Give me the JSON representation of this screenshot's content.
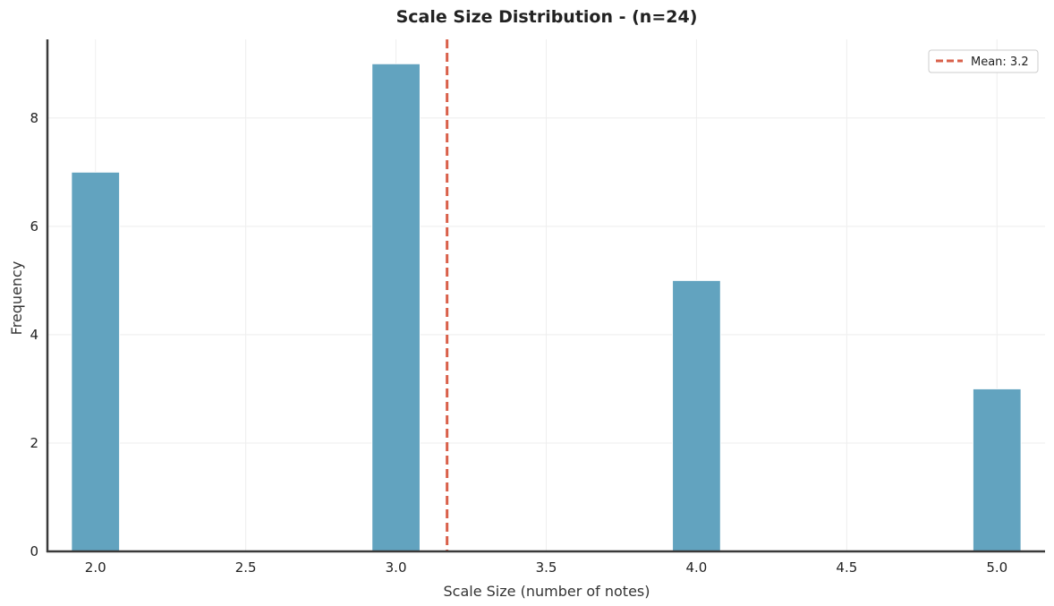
{
  "chart_data": {
    "type": "bar",
    "title": "Scale Size Distribution - (n=24)",
    "xlabel": "Scale Size (number of notes)",
    "ylabel": "Frequency",
    "bins": [
      {
        "x": 2.0,
        "value": 7
      },
      {
        "x": 3.0,
        "value": 9
      },
      {
        "x": 4.0,
        "value": 5
      },
      {
        "x": 5.0,
        "value": 3
      }
    ],
    "bin_width": 0.16,
    "xlim": [
      1.84,
      5.16
    ],
    "ylim": [
      0,
      9.45
    ],
    "xticks": [
      2.0,
      2.5,
      3.0,
      3.5,
      4.0,
      4.5,
      5.0
    ],
    "xtick_labels": [
      "2.0",
      "2.5",
      "3.0",
      "3.5",
      "4.0",
      "4.5",
      "5.0"
    ],
    "yticks": [
      0,
      2,
      4,
      6,
      8
    ],
    "ytick_labels": [
      "0",
      "2",
      "4",
      "6",
      "8"
    ],
    "mean": 3.17,
    "legend": {
      "label": "Mean: 3.2",
      "position": "top-right"
    },
    "grid": true,
    "colors": {
      "bar": "#62a3bf",
      "bar_edge": "#ffffff",
      "mean_line": "#d9604a",
      "axis": "#3a3a3a",
      "grid": "#eeeeee"
    }
  }
}
